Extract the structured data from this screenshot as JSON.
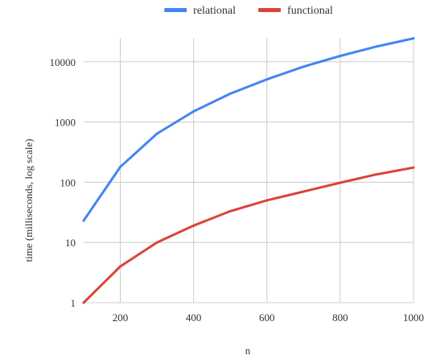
{
  "chart_data": {
    "type": "line",
    "title": "",
    "xlabel": "n",
    "ylabel": "time (milliseconds, log scale)",
    "yscale": "log",
    "xlim": [
      100,
      1000
    ],
    "ylim": [
      1,
      25000
    ],
    "grid": true,
    "legend_position": "top-center",
    "x_ticks": [
      200,
      400,
      600,
      800,
      1000
    ],
    "y_ticks": [
      1,
      10,
      100,
      1000,
      10000
    ],
    "x_tick_labels": [
      "200",
      "400",
      "600",
      "800",
      "1000"
    ],
    "y_tick_labels": [
      "1",
      "10",
      "100",
      "1000",
      "10000"
    ],
    "x": [
      100,
      200,
      300,
      400,
      500,
      600,
      700,
      800,
      900,
      1000
    ],
    "series": [
      {
        "name": "relational",
        "color": "#4285F4",
        "values": [
          23,
          180,
          640,
          1500,
          2950,
          5100,
          8300,
          12500,
          18000,
          24500
        ]
      },
      {
        "name": "functional",
        "color": "#DB4437",
        "values": [
          1,
          4,
          10,
          19,
          33,
          50,
          70,
          98,
          135,
          175
        ]
      }
    ]
  }
}
